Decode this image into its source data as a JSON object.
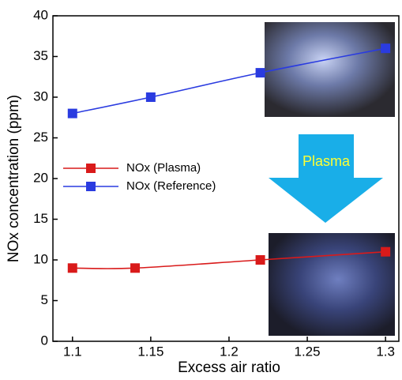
{
  "chart_data": {
    "type": "line",
    "x_label": "Excess air ratio",
    "y_label": "NOx concentration (ppm)",
    "annotation": "Plasma",
    "series": [
      {
        "name": "NOx (Plasma)",
        "color": "#d91a1a",
        "x": [
          1.1,
          1.14,
          1.22,
          1.3
        ],
        "values": [
          9,
          9,
          10,
          11
        ]
      },
      {
        "name": "NOx (Reference)",
        "color": "#2a3be0",
        "x": [
          1.1,
          1.15,
          1.22,
          1.3
        ],
        "values": [
          28,
          30,
          33,
          36
        ]
      }
    ],
    "xlim": [
      1.0875,
      1.3085
    ],
    "xticks": [
      1.1,
      1.15,
      1.2,
      1.25,
      1.3
    ],
    "ylim": [
      0,
      40
    ],
    "yticks": [
      0,
      5,
      10,
      15,
      20,
      25,
      30,
      35,
      40
    ],
    "legend": "center-left"
  }
}
